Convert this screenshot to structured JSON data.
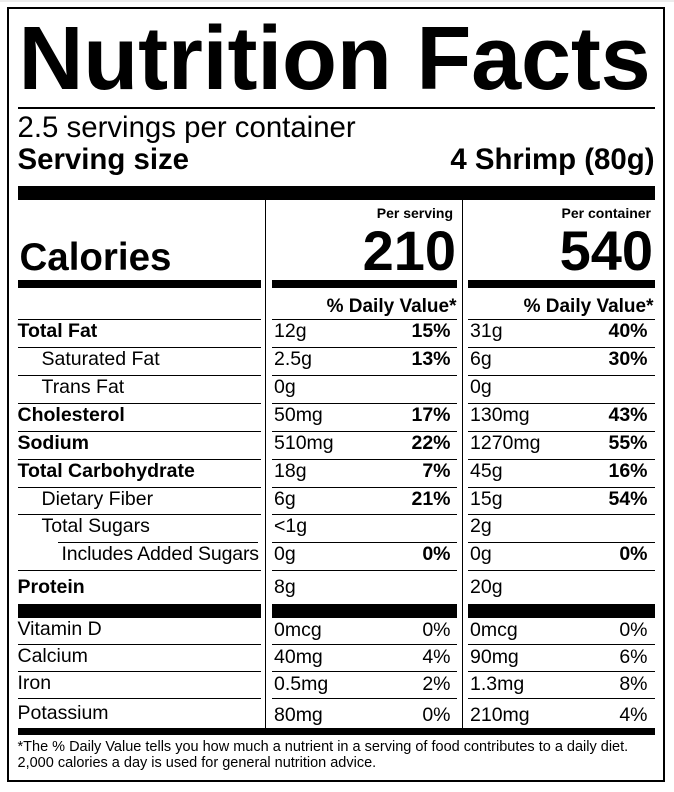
{
  "label": {
    "title": "Nutrition Facts",
    "servings_per_container": "2.5 servings per container",
    "serving_size_label": "Serving size",
    "serving_size_value": "4 Shrimp (80g)",
    "calories": {
      "word": "Calories",
      "per_serving_header": "Per serving",
      "per_container_header": "Per container",
      "per_serving_value": "210",
      "per_container_value": "540"
    },
    "daily_value_header": "% Daily Value*",
    "rows": [
      {
        "name": "Total Fat",
        "bold": true,
        "indent": 0,
        "ps_qty": "12g",
        "ps_dv": "15%",
        "pc_qty": "31g",
        "pc_dv": "40%"
      },
      {
        "name": "Saturated Fat",
        "bold": false,
        "indent": 1,
        "ps_qty": "2.5g",
        "ps_dv": "13%",
        "pc_qty": "6g",
        "pc_dv": "30%"
      },
      {
        "name": "Trans Fat",
        "bold": false,
        "indent": 1,
        "ps_qty": "0g",
        "ps_dv": "",
        "pc_qty": "0g",
        "pc_dv": ""
      },
      {
        "name": "Cholesterol",
        "bold": true,
        "indent": 0,
        "ps_qty": "50mg",
        "ps_dv": "17%",
        "pc_qty": "130mg",
        "pc_dv": "43%"
      },
      {
        "name": "Sodium",
        "bold": true,
        "indent": 0,
        "ps_qty": "510mg",
        "ps_dv": "22%",
        "pc_qty": "1270mg",
        "pc_dv": "55%"
      },
      {
        "name": "Total Carbohydrate",
        "bold": true,
        "indent": 0,
        "ps_qty": "18g",
        "ps_dv": "7%",
        "pc_qty": "45g",
        "pc_dv": "16%"
      },
      {
        "name": "Dietary Fiber",
        "bold": false,
        "indent": 1,
        "ps_qty": "6g",
        "ps_dv": "21%",
        "pc_qty": "15g",
        "pc_dv": "54%"
      },
      {
        "name": "Total Sugars",
        "bold": false,
        "indent": 1,
        "ps_qty": "<1g",
        "ps_dv": "",
        "pc_qty": "2g",
        "pc_dv": ""
      },
      {
        "name": "Includes Added Sugars",
        "bold": false,
        "indent": 2,
        "ps_qty": "0g",
        "ps_dv": "0%",
        "pc_qty": "0g",
        "pc_dv": "0%"
      },
      {
        "name": "Protein",
        "bold": true,
        "indent": 0,
        "ps_qty": "8g",
        "ps_dv": "",
        "pc_qty": "20g",
        "pc_dv": ""
      }
    ],
    "vitamin_rows": [
      {
        "name": "Vitamin D",
        "ps_qty": "0mcg",
        "ps_dv": "0%",
        "pc_qty": "0mcg",
        "pc_dv": "0%"
      },
      {
        "name": "Calcium",
        "ps_qty": "40mg",
        "ps_dv": "4%",
        "pc_qty": "90mg",
        "pc_dv": "6%"
      },
      {
        "name": "Iron",
        "ps_qty": "0.5mg",
        "ps_dv": "2%",
        "pc_qty": "1.3mg",
        "pc_dv": "8%"
      },
      {
        "name": "Potassium",
        "ps_qty": "80mg",
        "ps_dv": "0%",
        "pc_qty": "210mg",
        "pc_dv": "4%"
      }
    ],
    "footnote_lines": [
      "*The % Daily Value tells you how much a nutrient in a serving of food contributes to a daily diet.",
      "2,000 calories a day is used for general nutrition advice."
    ]
  }
}
